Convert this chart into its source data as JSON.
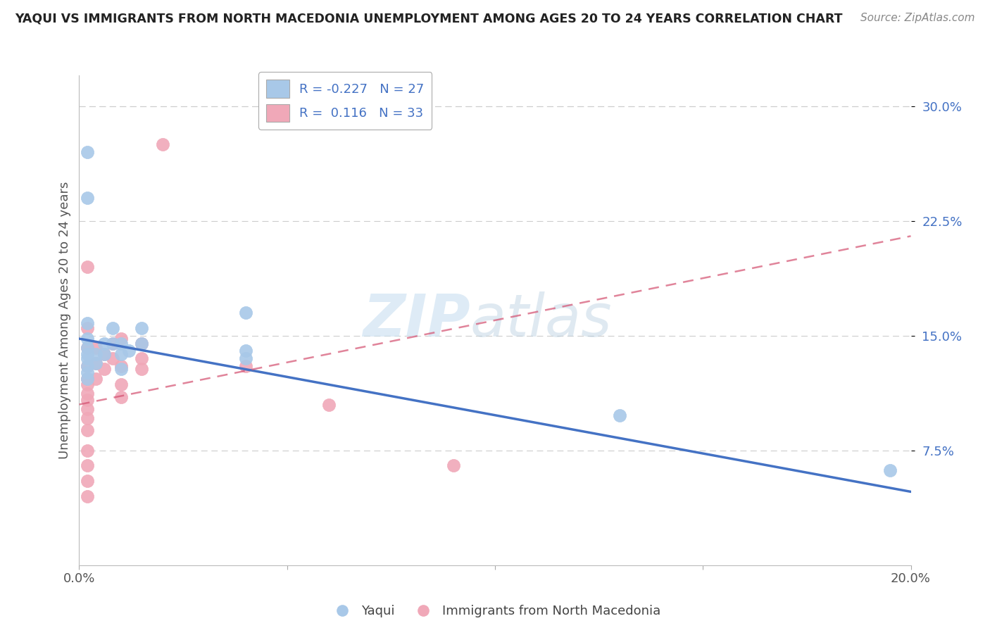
{
  "title": "YAQUI VS IMMIGRANTS FROM NORTH MACEDONIA UNEMPLOYMENT AMONG AGES 20 TO 24 YEARS CORRELATION CHART",
  "source": "Source: ZipAtlas.com",
  "ylabel": "Unemployment Among Ages 20 to 24 years",
  "xlim": [
    0.0,
    0.2
  ],
  "ylim": [
    0.0,
    0.32
  ],
  "ytick_positions": [
    0.075,
    0.15,
    0.225,
    0.3
  ],
  "ytick_labels": [
    "7.5%",
    "15.0%",
    "22.5%",
    "30.0%"
  ],
  "legend_r1": "R = -0.227",
  "legend_n1": "N = 27",
  "legend_r2": "R =  0.116",
  "legend_n2": "N = 33",
  "color_yaqui": "#a8c8e8",
  "color_immig": "#f0a8b8",
  "line_color_yaqui": "#4472c4",
  "line_color_immig": "#d45070",
  "watermark_zip": "ZIP",
  "watermark_atlas": "atlas",
  "background_color": "#ffffff",
  "grid_color": "#cccccc",
  "yaqui_points": [
    [
      0.002,
      0.27
    ],
    [
      0.002,
      0.24
    ],
    [
      0.002,
      0.158
    ],
    [
      0.002,
      0.148
    ],
    [
      0.002,
      0.142
    ],
    [
      0.002,
      0.138
    ],
    [
      0.002,
      0.135
    ],
    [
      0.002,
      0.13
    ],
    [
      0.002,
      0.126
    ],
    [
      0.002,
      0.122
    ],
    [
      0.004,
      0.138
    ],
    [
      0.004,
      0.132
    ],
    [
      0.006,
      0.145
    ],
    [
      0.006,
      0.138
    ],
    [
      0.008,
      0.155
    ],
    [
      0.008,
      0.145
    ],
    [
      0.01,
      0.145
    ],
    [
      0.01,
      0.138
    ],
    [
      0.01,
      0.128
    ],
    [
      0.012,
      0.14
    ],
    [
      0.015,
      0.155
    ],
    [
      0.015,
      0.145
    ],
    [
      0.04,
      0.165
    ],
    [
      0.04,
      0.14
    ],
    [
      0.04,
      0.135
    ],
    [
      0.13,
      0.098
    ],
    [
      0.195,
      0.062
    ]
  ],
  "immig_points": [
    [
      0.002,
      0.195
    ],
    [
      0.002,
      0.155
    ],
    [
      0.002,
      0.142
    ],
    [
      0.002,
      0.13
    ],
    [
      0.002,
      0.122
    ],
    [
      0.002,
      0.118
    ],
    [
      0.002,
      0.112
    ],
    [
      0.002,
      0.108
    ],
    [
      0.002,
      0.102
    ],
    [
      0.002,
      0.096
    ],
    [
      0.002,
      0.088
    ],
    [
      0.002,
      0.075
    ],
    [
      0.002,
      0.065
    ],
    [
      0.002,
      0.055
    ],
    [
      0.002,
      0.045
    ],
    [
      0.004,
      0.142
    ],
    [
      0.004,
      0.132
    ],
    [
      0.004,
      0.122
    ],
    [
      0.006,
      0.138
    ],
    [
      0.006,
      0.128
    ],
    [
      0.008,
      0.145
    ],
    [
      0.008,
      0.135
    ],
    [
      0.01,
      0.148
    ],
    [
      0.01,
      0.13
    ],
    [
      0.01,
      0.118
    ],
    [
      0.01,
      0.11
    ],
    [
      0.015,
      0.145
    ],
    [
      0.015,
      0.135
    ],
    [
      0.015,
      0.128
    ],
    [
      0.02,
      0.275
    ],
    [
      0.04,
      0.13
    ],
    [
      0.06,
      0.105
    ],
    [
      0.09,
      0.065
    ]
  ],
  "yaqui_line": [
    0.0,
    0.2,
    0.148,
    0.048
  ],
  "immig_line": [
    0.0,
    0.2,
    0.105,
    0.215
  ]
}
